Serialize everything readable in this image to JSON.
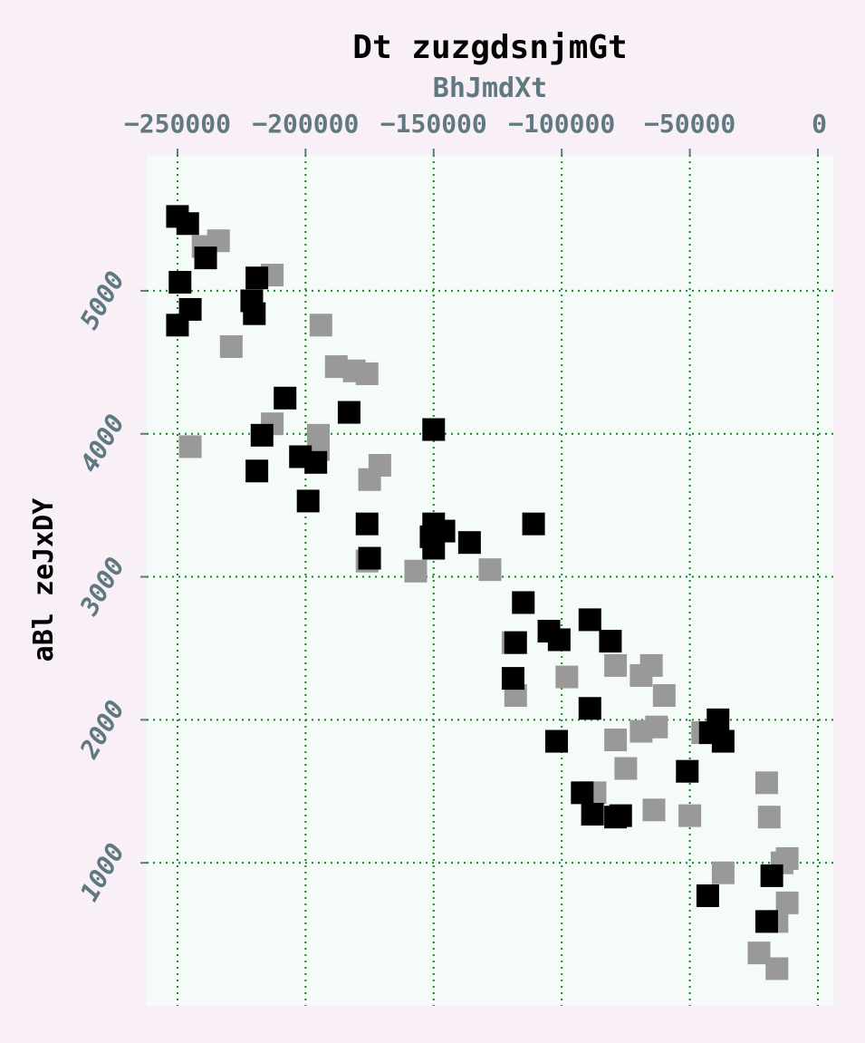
{
  "chart_data": {
    "type": "scatter",
    "title": "Dt zuzgdsnjmGt",
    "xlabel": "BhJmdXt",
    "ylabel": "aBl zeJxDY",
    "x_axis_position": "top",
    "xlim": [
      -262000,
      6000
    ],
    "ylim": [
      0,
      5950
    ],
    "xticks": [
      -250000,
      -200000,
      -150000,
      -100000,
      -50000,
      0
    ],
    "xtick_labels": [
      "−250000",
      "−200000",
      "−150000",
      "−100000",
      "−50000",
      "0"
    ],
    "yticks": [
      1000,
      2000,
      3000,
      4000,
      5000
    ],
    "ytick_labels": [
      "1000",
      "2000",
      "3000",
      "4000",
      "5000"
    ],
    "grid": true,
    "legend": "none",
    "colors": {
      "page_background": "#f9f0f7",
      "plot_background": "#f5fbf8",
      "grid": "#138a13",
      "tick_label": "#607880",
      "series_black": "#000000",
      "series_gray": "#999999"
    },
    "series": [
      {
        "color": "#999999",
        "marker": "square",
        "points": [
          [
            -240000,
            5310
          ],
          [
            -234000,
            5350
          ],
          [
            -213000,
            5110
          ],
          [
            -229000,
            4610
          ],
          [
            -194000,
            4760
          ],
          [
            -188000,
            4470
          ],
          [
            -181000,
            4440
          ],
          [
            -176000,
            4420
          ],
          [
            -213000,
            4070
          ],
          [
            -245000,
            3910
          ],
          [
            -195000,
            3990
          ],
          [
            -195000,
            3890
          ],
          [
            -175000,
            3680
          ],
          [
            -171000,
            3780
          ],
          [
            -176000,
            3110
          ],
          [
            -157000,
            3040
          ],
          [
            -128000,
            3050
          ],
          [
            -119000,
            2540
          ],
          [
            -118000,
            2170
          ],
          [
            -98000,
            2300
          ],
          [
            -79000,
            2380
          ],
          [
            -69000,
            2310
          ],
          [
            -65000,
            2380
          ],
          [
            -60000,
            2170
          ],
          [
            -79000,
            1860
          ],
          [
            -75000,
            1660
          ],
          [
            -69000,
            1920
          ],
          [
            -63000,
            1950
          ],
          [
            -87000,
            1490
          ],
          [
            -64000,
            1370
          ],
          [
            -50000,
            1330
          ],
          [
            -45000,
            1910
          ],
          [
            -20000,
            1560
          ],
          [
            -19000,
            1320
          ],
          [
            -37000,
            930
          ],
          [
            -14000,
            1000
          ],
          [
            -12000,
            1030
          ],
          [
            -12000,
            720
          ],
          [
            -16000,
            590
          ],
          [
            -23000,
            370
          ],
          [
            -16000,
            260
          ]
        ]
      },
      {
        "color": "#000000",
        "marker": "square",
        "points": [
          [
            -250000,
            5520
          ],
          [
            -246000,
            5470
          ],
          [
            -239000,
            5230
          ],
          [
            -219000,
            5090
          ],
          [
            -249000,
            5060
          ],
          [
            -221000,
            4930
          ],
          [
            -245000,
            4870
          ],
          [
            -220000,
            4840
          ],
          [
            -250000,
            4760
          ],
          [
            -208000,
            4250
          ],
          [
            -183000,
            4150
          ],
          [
            -150000,
            4030
          ],
          [
            -217000,
            3990
          ],
          [
            -202000,
            3840
          ],
          [
            -196000,
            3800
          ],
          [
            -219000,
            3740
          ],
          [
            -199000,
            3530
          ],
          [
            -176000,
            3370
          ],
          [
            -150000,
            3370
          ],
          [
            -146000,
            3320
          ],
          [
            -151000,
            3280
          ],
          [
            -150000,
            3200
          ],
          [
            -136000,
            3240
          ],
          [
            -175000,
            3130
          ],
          [
            -111000,
            3370
          ],
          [
            -115000,
            2820
          ],
          [
            -105000,
            2620
          ],
          [
            -101000,
            2560
          ],
          [
            -89000,
            2700
          ],
          [
            -81000,
            2550
          ],
          [
            -118000,
            2540
          ],
          [
            -119000,
            2290
          ],
          [
            -89000,
            2080
          ],
          [
            -102000,
            1850
          ],
          [
            -92000,
            1490
          ],
          [
            -88000,
            1340
          ],
          [
            -79000,
            1320
          ],
          [
            -77000,
            1330
          ],
          [
            -51000,
            1640
          ],
          [
            -39000,
            2000
          ],
          [
            -42000,
            1910
          ],
          [
            -37000,
            1850
          ],
          [
            -18000,
            910
          ],
          [
            -43000,
            770
          ],
          [
            -20000,
            590
          ]
        ]
      }
    ]
  }
}
